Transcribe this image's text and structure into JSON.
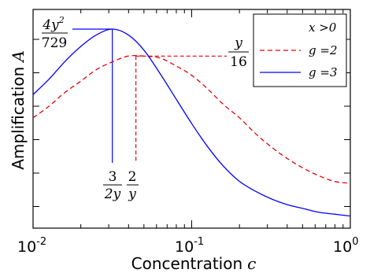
{
  "chart_data": {
    "type": "line",
    "xscale": "log",
    "xlim": [
      0.01,
      1
    ],
    "ylim": [
      0,
      1
    ],
    "y_ticks_unlabeled": true,
    "xlabel": "Concentration",
    "xlabel_var": "c",
    "ylabel": "Amplification",
    "ylabel_var": "A",
    "x_ticks": [
      {
        "base": "10",
        "exp": "-2",
        "value": 0.01
      },
      {
        "base": "10",
        "exp": "-1",
        "value": 0.1
      },
      {
        "base": "10",
        "exp": "0",
        "value": 1
      }
    ],
    "legend": {
      "position": "top-right",
      "entries": [
        {
          "label": "x >0",
          "style": "none",
          "color": ""
        },
        {
          "label": "g =2",
          "style": "dashed",
          "color": "#e8000b"
        },
        {
          "label": "g =3",
          "style": "solid",
          "color": "#0000ff"
        }
      ]
    },
    "series": [
      {
        "name": "g =3",
        "style": "solid",
        "color": "#0000ff",
        "x": [
          0.01,
          0.0126,
          0.0158,
          0.02,
          0.0251,
          0.0316,
          0.0398,
          0.0501,
          0.0631,
          0.0794,
          0.1,
          0.126,
          0.158,
          0.2,
          0.251,
          0.316,
          0.398,
          0.501,
          0.631,
          0.794,
          1.0
        ],
        "y": [
          0.66,
          0.74,
          0.83,
          0.91,
          0.97,
          1.0,
          0.97,
          0.89,
          0.77,
          0.64,
          0.51,
          0.39,
          0.29,
          0.21,
          0.16,
          0.12,
          0.09,
          0.07,
          0.05,
          0.04,
          0.03
        ]
      },
      {
        "name": "g =2",
        "style": "dashed",
        "color": "#e8000b",
        "x": [
          0.01,
          0.0126,
          0.0158,
          0.02,
          0.0251,
          0.0316,
          0.0398,
          0.0501,
          0.0631,
          0.0794,
          0.1,
          0.126,
          0.158,
          0.2,
          0.251,
          0.316,
          0.398,
          0.501,
          0.631,
          0.794,
          1.0
        ],
        "y": [
          0.54,
          0.6,
          0.67,
          0.73,
          0.79,
          0.83,
          0.86,
          0.86,
          0.85,
          0.81,
          0.76,
          0.69,
          0.61,
          0.54,
          0.46,
          0.39,
          0.33,
          0.28,
          0.24,
          0.21,
          0.2
        ]
      }
    ],
    "annotations": [
      {
        "id": "peak-g3",
        "x": 0.0316,
        "y": 1.0,
        "y_num": "4y",
        "y_num_sup": "2",
        "y_den": "729",
        "x_num": "3",
        "x_den": "2y"
      },
      {
        "id": "peak-g2",
        "x": 0.0445,
        "y": 0.86,
        "y_num": "y",
        "y_den": "16",
        "x_num": "2",
        "x_den": "y"
      }
    ]
  }
}
